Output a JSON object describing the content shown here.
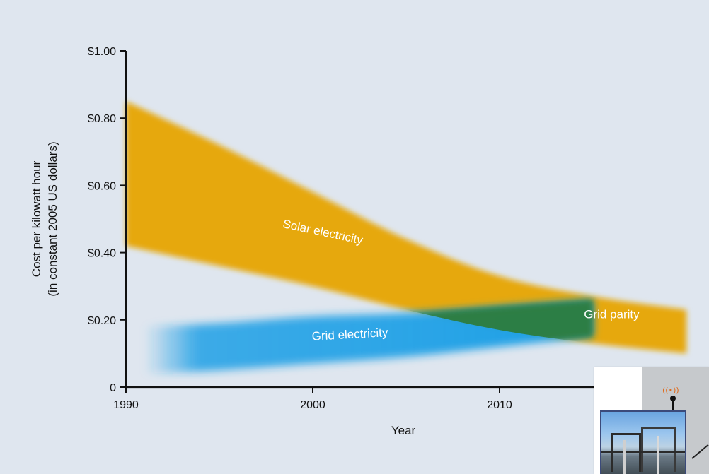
{
  "chart_data": {
    "type": "area",
    "xlabel": "Year",
    "ylabel_lines": [
      "Cost per kilowatt hour",
      "(in constant 2005 US dollars)"
    ],
    "xlim": [
      1990,
      2020
    ],
    "ylim": [
      0,
      1.0
    ],
    "x_ticks": [
      {
        "value": 1990,
        "label": "1990"
      },
      {
        "value": 2000,
        "label": "2000"
      },
      {
        "value": 2010,
        "label": "2010"
      }
    ],
    "y_ticks": [
      {
        "value": 0,
        "label": "0"
      },
      {
        "value": 0.2,
        "label": "$0.20"
      },
      {
        "value": 0.4,
        "label": "$0.40"
      },
      {
        "value": 0.6,
        "label": "$0.60"
      },
      {
        "value": 0.8,
        "label": "$0.80"
      },
      {
        "value": 1.0,
        "label": "$1.00"
      }
    ],
    "bands": [
      {
        "name": "Solar electricity",
        "color": "#e6a80c",
        "x": [
          1990,
          1995,
          2000,
          2005,
          2010,
          2015,
          2020
        ],
        "upper": [
          0.85,
          0.72,
          0.58,
          0.44,
          0.33,
          0.27,
          0.23
        ],
        "lower": [
          0.42,
          0.36,
          0.3,
          0.23,
          0.17,
          0.13,
          0.1
        ]
      },
      {
        "name": "Grid electricity",
        "color": "#1ea0e6",
        "x": [
          1991,
          1995,
          2000,
          2005,
          2010,
          2015
        ],
        "upper": [
          0.18,
          0.19,
          0.21,
          0.22,
          0.24,
          0.26
        ],
        "lower": [
          0.04,
          0.05,
          0.07,
          0.09,
          0.12,
          0.15
        ]
      }
    ],
    "annotations": [
      {
        "text": "Solar electricity",
        "x": 2000.5,
        "y": 0.45,
        "rotate": 12
      },
      {
        "text": "Grid electricity",
        "x": 2002,
        "y": 0.145,
        "rotate": -3
      },
      {
        "text": "Grid parity",
        "x": 2016,
        "y": 0.205,
        "rotate": 0
      }
    ],
    "overlap_color": "#2e7d3c",
    "grid": false
  },
  "thumbnail": {
    "icon": "substation-photo",
    "signal_icon": "((•))"
  }
}
